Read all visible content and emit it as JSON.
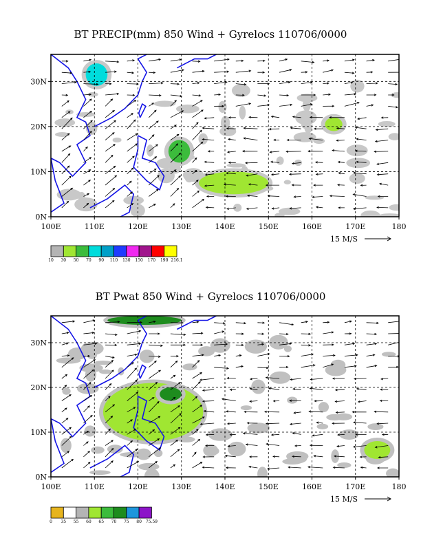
{
  "panels": [
    {
      "title": "BT PRECIP(mm) 850 Wind + Gyrelocs 110706/0000",
      "x_ticks": [
        "100E",
        "110E",
        "120E",
        "130E",
        "140E",
        "150E",
        "160E",
        "170E",
        "180"
      ],
      "y_ticks": [
        "0N",
        "10N",
        "20N",
        "30N"
      ],
      "ref_vector": "15 M/S",
      "colorbar_labels": [
        "10",
        "30",
        "50",
        "70",
        "90",
        "110",
        "130",
        "150",
        "170",
        "190",
        "216.1"
      ],
      "colorbar_colors": [
        "#b4b4b4",
        "#a0e632",
        "#3cbc3c",
        "#00dcdc",
        "#00a0c8",
        "#1e3cff",
        "#f028f0",
        "#a0148c",
        "#ff0000",
        "#ffff00"
      ]
    },
    {
      "title": "BT Pwat 850 Wind + Gyrelocs 110706/0000",
      "x_ticks": [
        "100E",
        "110E",
        "120E",
        "130E",
        "140E",
        "150E",
        "160E",
        "170E",
        "180"
      ],
      "y_ticks": [
        "0N",
        "10N",
        "20N",
        "30N"
      ],
      "ref_vector": "15 M/S",
      "colorbar_labels": [
        "0",
        "35",
        "55",
        "60",
        "65",
        "70",
        "75",
        "80",
        "75.59"
      ],
      "colorbar_colors": [
        "#e6b41e",
        "#ffffff",
        "#b4b4b4",
        "#a0e632",
        "#3cbc3c",
        "#1e8c1e",
        "#1e96dc",
        "#8c14c8"
      ]
    }
  ],
  "chart_data": [
    {
      "type": "heatmap",
      "title": "BT PRECIP(mm) 850 Wind + Gyrelocs 110706/0000",
      "xlabel": "",
      "ylabel": "",
      "xlim": [
        100,
        180
      ],
      "ylim": [
        0,
        36
      ],
      "x_tick_values": [
        100,
        110,
        120,
        130,
        140,
        150,
        160,
        170,
        180
      ],
      "y_tick_values": [
        0,
        10,
        20,
        30
      ],
      "grid": true,
      "colorbar_levels": [
        10,
        30,
        50,
        70,
        90,
        110,
        130,
        150,
        170,
        190,
        216.1
      ],
      "reference_vector_speed_mps": 15,
      "approx_precip_regions": [
        {
          "lon": [
            108,
            113
          ],
          "lat": [
            29,
            34
          ],
          "level": "70-90"
        },
        {
          "lon": [
            127,
            132
          ],
          "lat": [
            12,
            17
          ],
          "level": "50-70"
        },
        {
          "lon": [
            134,
            150
          ],
          "lat": [
            5,
            10
          ],
          "level": "30-50"
        },
        {
          "lon": [
            163,
            167
          ],
          "lat": [
            19,
            22
          ],
          "level": "10-30"
        }
      ]
    },
    {
      "type": "heatmap",
      "title": "BT Pwat 850 Wind + Gyrelocs 110706/0000",
      "xlabel": "",
      "ylabel": "",
      "xlim": [
        100,
        180
      ],
      "ylim": [
        0,
        36
      ],
      "x_tick_values": [
        100,
        110,
        120,
        130,
        140,
        150,
        160,
        170,
        180
      ],
      "y_tick_values": [
        0,
        10,
        20,
        30
      ],
      "grid": true,
      "colorbar_levels": [
        0,
        35,
        55,
        60,
        65,
        70,
        75,
        80,
        75.59
      ],
      "reference_vector_speed_mps": 15,
      "approx_pwat_regions": [
        {
          "lon": [
            112,
            135
          ],
          "lat": [
            8,
            21
          ],
          "level": "60-70"
        },
        {
          "lon": [
            125,
            130
          ],
          "lat": [
            17,
            20
          ],
          "level": "70-75"
        },
        {
          "lon": [
            113,
            130
          ],
          "lat": [
            34,
            36
          ],
          "level": "70-75"
        },
        {
          "lon": [
            172,
            178
          ],
          "lat": [
            4,
            8
          ],
          "level": "60-65"
        }
      ]
    }
  ]
}
